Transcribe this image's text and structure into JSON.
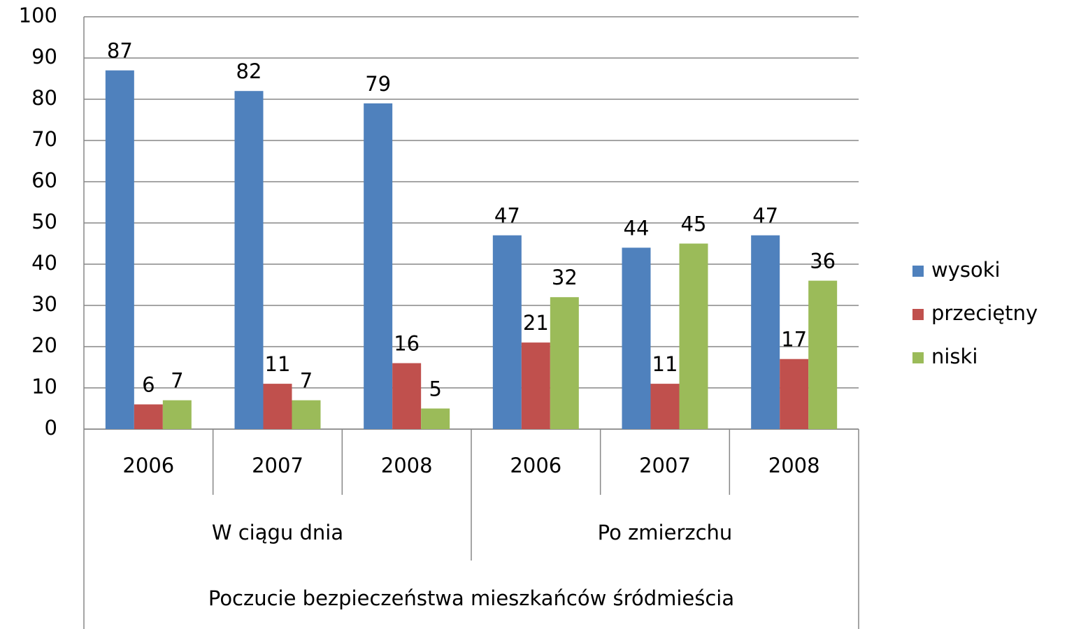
{
  "chart_data": {
    "type": "bar",
    "xlabel": "Poczucie bezpieczeństwa  mieszkańców śródmieścia",
    "groups": [
      {
        "name": "W ciągu dnia",
        "categories": [
          "2006",
          "2007",
          "2008"
        ]
      },
      {
        "name": "Po zmierzchu",
        "categories": [
          "2006",
          "2007",
          "2008"
        ]
      }
    ],
    "series": [
      {
        "name": "wysoki",
        "color": "#4f81bd",
        "values": [
          87,
          82,
          79,
          47,
          44,
          47
        ]
      },
      {
        "name": "przeciętny",
        "color": "#c0504d",
        "values": [
          6,
          11,
          16,
          21,
          11,
          17
        ]
      },
      {
        "name": "niski",
        "color": "#9bbb59",
        "values": [
          7,
          7,
          5,
          32,
          45,
          36
        ]
      }
    ],
    "ylim": [
      0,
      100
    ],
    "yticks": [
      0,
      10,
      20,
      30,
      40,
      50,
      60,
      70,
      80,
      90,
      100
    ],
    "grid": true,
    "legend": "right"
  }
}
